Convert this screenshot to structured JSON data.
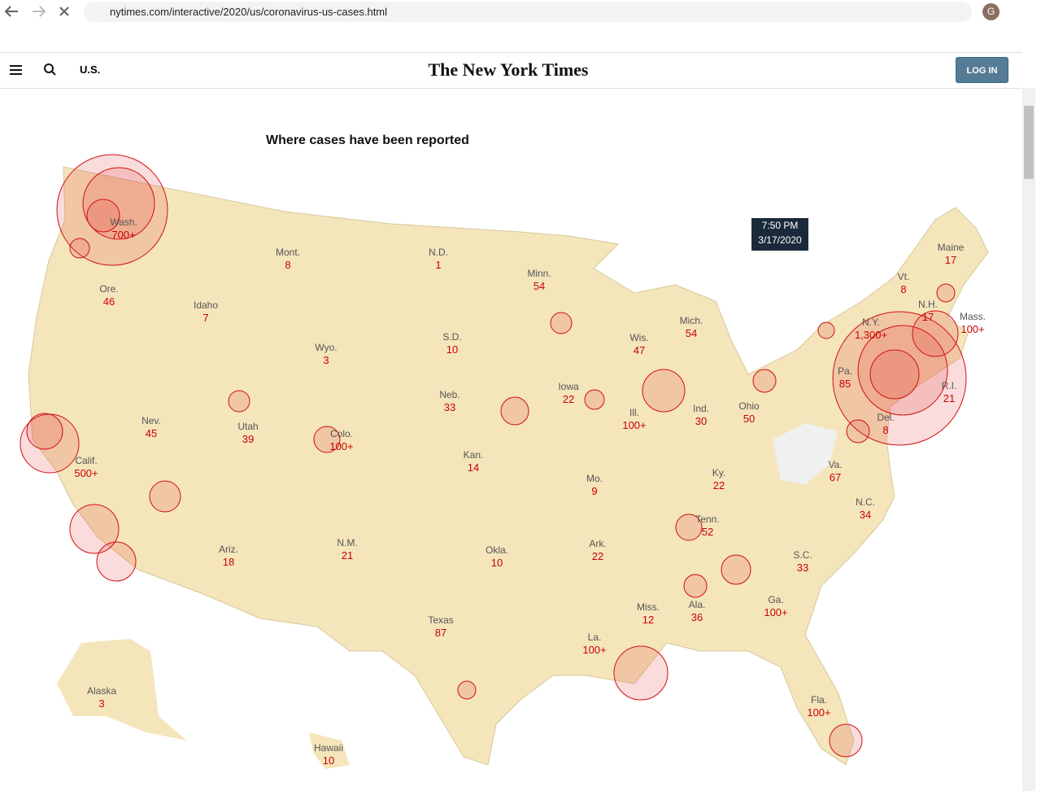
{
  "browser": {
    "url": "nytimes.com/interactive/2020/us/coronavirus-us-cases.html",
    "profile": "G"
  },
  "header": {
    "section": "U.S.",
    "logo": "The New York Times",
    "login": "LOG IN"
  },
  "map": {
    "title": "Where cases have been reported",
    "timestamp": {
      "time": "7:50 PM",
      "date": "3/17/2020"
    },
    "states": [
      {
        "name": "Wash.",
        "cases": "700+"
      },
      {
        "name": "Mont.",
        "cases": "8"
      },
      {
        "name": "N.D.",
        "cases": "1"
      },
      {
        "name": "Minn.",
        "cases": "54"
      },
      {
        "name": "Maine",
        "cases": "17"
      },
      {
        "name": "Vt.",
        "cases": "8"
      },
      {
        "name": "N.H.",
        "cases": "17"
      },
      {
        "name": "Mass.",
        "cases": "100+"
      },
      {
        "name": "N.Y.",
        "cases": "1,300+"
      },
      {
        "name": "R.I.",
        "cases": "21"
      },
      {
        "name": "Del.",
        "cases": "8"
      },
      {
        "name": "Ore.",
        "cases": "46"
      },
      {
        "name": "Idaho",
        "cases": "7"
      },
      {
        "name": "Wyo.",
        "cases": "3"
      },
      {
        "name": "S.D.",
        "cases": "10"
      },
      {
        "name": "Wis.",
        "cases": "47"
      },
      {
        "name": "Mich.",
        "cases": "54"
      },
      {
        "name": "Iowa",
        "cases": "22"
      },
      {
        "name": "Neb.",
        "cases": "33"
      },
      {
        "name": "Pa.",
        "cases": "85"
      },
      {
        "name": "Ohio",
        "cases": "50"
      },
      {
        "name": "Ind.",
        "cases": "30"
      },
      {
        "name": "Ill.",
        "cases": "100+"
      },
      {
        "name": "Nev.",
        "cases": "45"
      },
      {
        "name": "Utah",
        "cases": "39"
      },
      {
        "name": "Colo.",
        "cases": "100+"
      },
      {
        "name": "Calif.",
        "cases": "500+"
      },
      {
        "name": "Kan.",
        "cases": "14"
      },
      {
        "name": "Mo.",
        "cases": "9"
      },
      {
        "name": "Ky.",
        "cases": "22"
      },
      {
        "name": "Va.",
        "cases": "67"
      },
      {
        "name": "N.C.",
        "cases": "34"
      },
      {
        "name": "Tenn.",
        "cases": "52"
      },
      {
        "name": "Ariz.",
        "cases": "18"
      },
      {
        "name": "N.M.",
        "cases": "21"
      },
      {
        "name": "Okla.",
        "cases": "10"
      },
      {
        "name": "Ark.",
        "cases": "22"
      },
      {
        "name": "S.C.",
        "cases": "33"
      },
      {
        "name": "Ga.",
        "cases": "100+"
      },
      {
        "name": "Ala.",
        "cases": "36"
      },
      {
        "name": "Miss.",
        "cases": "12"
      },
      {
        "name": "Texas",
        "cases": "87"
      },
      {
        "name": "La.",
        "cases": "100+"
      },
      {
        "name": "Fla.",
        "cases": "100+"
      },
      {
        "name": "Alaska",
        "cases": "3"
      },
      {
        "name": "Hawaii",
        "cases": "10"
      }
    ]
  }
}
